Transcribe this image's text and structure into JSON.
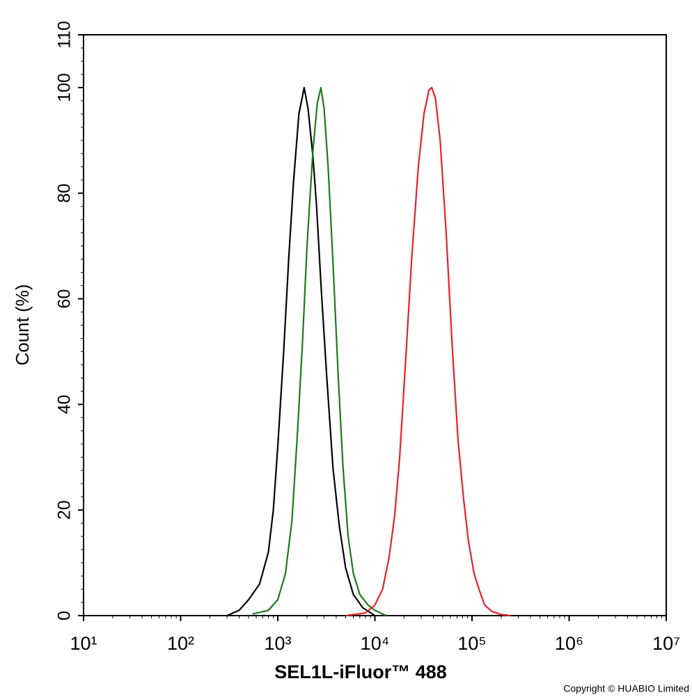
{
  "chart_data": {
    "type": "line",
    "xlabel": "SEL1L-iFluor™ 488",
    "ylabel": "Count  (%)",
    "annotation": "Copyright © HUABIO Limited",
    "xscale": "log",
    "xlim": [
      10,
      10000000
    ],
    "xticks": [
      {
        "value": 10,
        "label": "10¹"
      },
      {
        "value": 100,
        "label": "10²"
      },
      {
        "value": 1000,
        "label": "10³"
      },
      {
        "value": 10000,
        "label": "10⁴"
      },
      {
        "value": 100000,
        "label": "10⁵"
      },
      {
        "value": 1000000,
        "label": "10⁶"
      },
      {
        "value": 10000000,
        "label": "10⁷"
      }
    ],
    "ylim": [
      0,
      110
    ],
    "yticks": [
      0,
      20,
      40,
      60,
      80,
      100,
      110
    ],
    "grid": false,
    "series": [
      {
        "color": "#000000",
        "x": [
          300,
          400,
          500,
          650,
          800,
          900,
          1000,
          1150,
          1300,
          1450,
          1650,
          1870,
          2050,
          2300,
          2500,
          2800,
          3200,
          3700,
          4300,
          5000,
          6000,
          7500,
          10000
        ],
        "values": [
          0,
          1,
          3,
          6,
          12,
          20,
          32,
          50,
          68,
          82,
          95,
          100,
          96,
          87,
          78,
          62,
          45,
          28,
          17,
          9,
          4,
          1.5,
          0
        ]
      },
      {
        "color": "#1a7a1a",
        "x": [
          550,
          800,
          1000,
          1200,
          1400,
          1600,
          1800,
          2000,
          2300,
          2550,
          2780,
          3000,
          3300,
          3700,
          4200,
          4700,
          5300,
          6000,
          7000,
          8500,
          10000,
          13000
        ],
        "values": [
          0.3,
          1,
          3,
          8,
          18,
          35,
          52,
          70,
          88,
          97,
          100,
          96,
          85,
          67,
          45,
          28,
          15,
          8,
          4,
          2,
          1,
          0
        ]
      },
      {
        "color": "#e8202a",
        "x": [
          5000,
          8000,
          10000,
          12000,
          14000,
          16000,
          18000,
          21000,
          24000,
          28000,
          32000,
          36000,
          38500,
          42000,
          47000,
          54000,
          63000,
          72000,
          82000,
          92000,
          105000,
          118000,
          135000,
          160000,
          200000,
          250000
        ],
        "values": [
          0,
          0.5,
          2,
          5,
          11,
          19,
          30,
          50,
          68,
          85,
          95,
          99.5,
          100,
          98,
          90,
          73,
          50,
          33,
          22,
          14,
          8,
          5,
          2,
          0.8,
          0.2,
          0
        ]
      }
    ]
  }
}
